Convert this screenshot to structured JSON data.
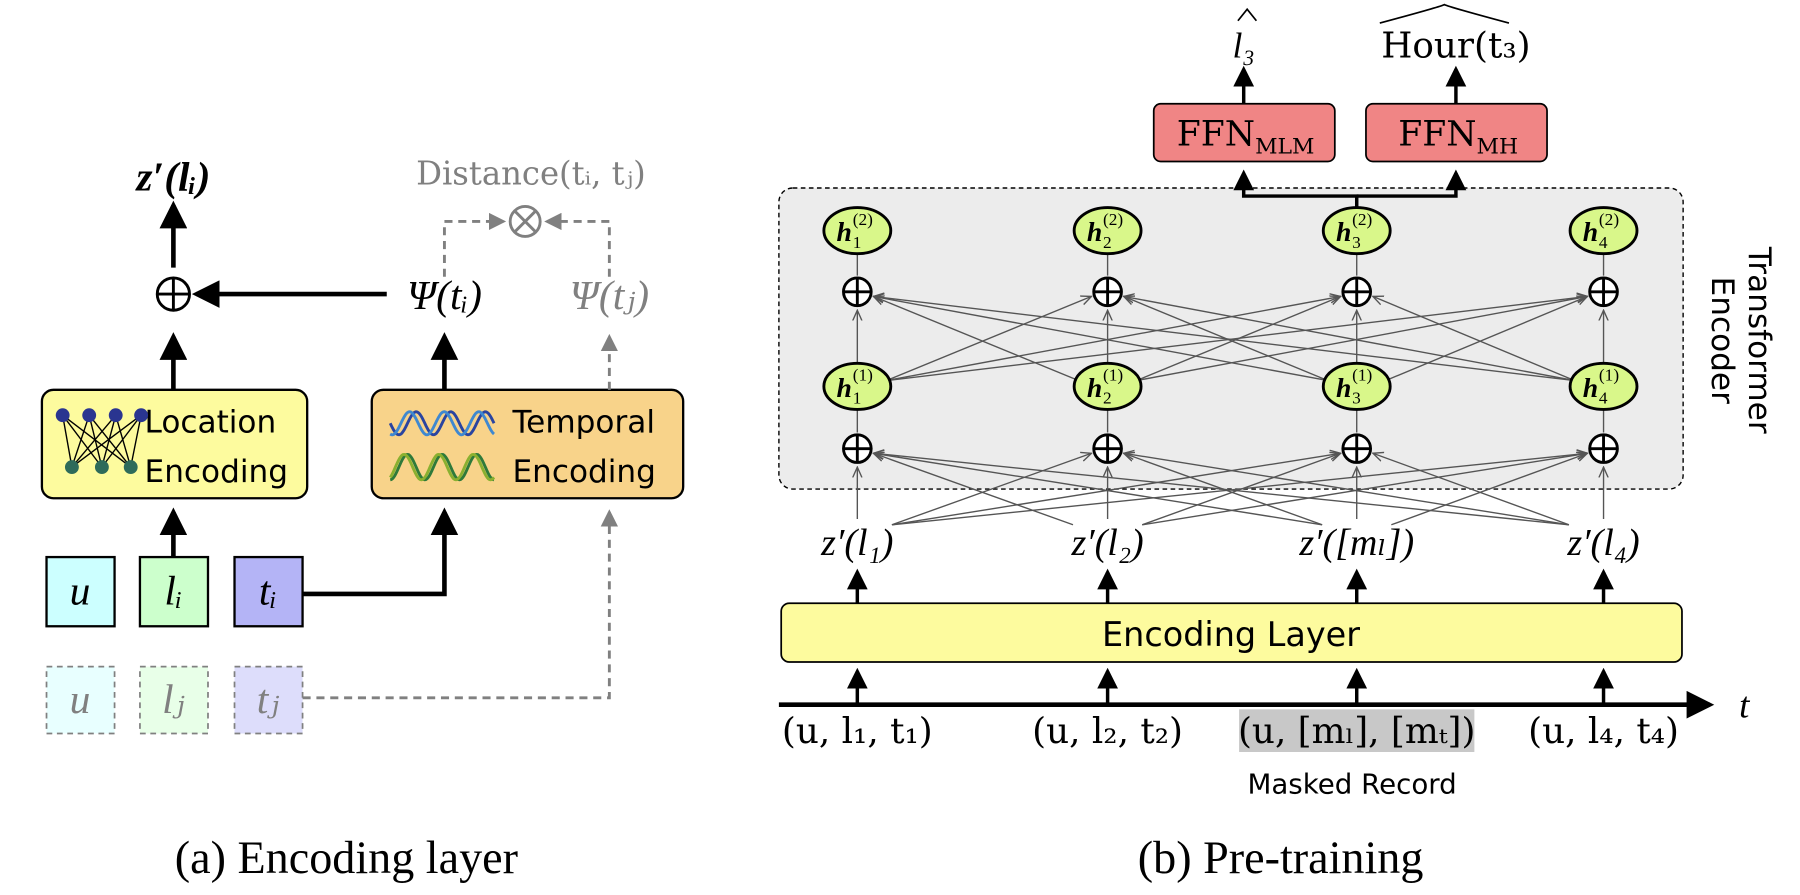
{
  "panel_a": {
    "caption": "(a) Encoding layer",
    "output_label": "z′(lᵢ)",
    "distance_label": "Distance(tᵢ, tⱼ)",
    "psi_i": "Ψ(tᵢ)",
    "psi_j": "Ψ(tⱼ)",
    "location_encoding": [
      "Location",
      "Encoding"
    ],
    "temporal_encoding": [
      "Temporal",
      "Encoding"
    ],
    "inputs_i": [
      "u",
      "lᵢ",
      "tᵢ"
    ],
    "inputs_j": [
      "u",
      "lⱼ",
      "tⱼ"
    ],
    "colors": {
      "location_box": "#fdfb9e",
      "temporal_box": "#f8d38a",
      "user": "#ccffff",
      "location": "#ccffcc",
      "time": "#b4b4f6",
      "faded": "#808080"
    }
  },
  "panel_b": {
    "caption": "(b) Pre-training",
    "encoder_label": [
      "Transformer",
      "Encoder"
    ],
    "encoding_layer": "Encoding Layer",
    "heads": [
      {
        "base": "FFN",
        "sub": "MLM",
        "output": "l₃"
      },
      {
        "base": "FFN",
        "sub": "MH",
        "output": "Hour(t₃)"
      }
    ],
    "hidden_layer2": [
      {
        "sub": "1",
        "sup": "(2)"
      },
      {
        "sub": "2",
        "sup": "(2)"
      },
      {
        "sub": "3",
        "sup": "(2)"
      },
      {
        "sub": "4",
        "sup": "(2)"
      }
    ],
    "hidden_layer1": [
      {
        "sub": "1",
        "sup": "(1)"
      },
      {
        "sub": "2",
        "sup": "(1)"
      },
      {
        "sub": "3",
        "sup": "(1)"
      },
      {
        "sub": "4",
        "sup": "(1)"
      }
    ],
    "hidden_base": "h",
    "embeddings": [
      "z′(l₁)",
      "z′(l₂)",
      "z′([mₗ])",
      "z′(l₄)"
    ],
    "records": [
      "(u, l₁, t₁)",
      "(u, l₂, t₂)",
      "(u, [mₗ], [mₜ])",
      "(u, l₄, t₄)"
    ],
    "masked_index": 2,
    "masked_label": "Masked Record",
    "time_axis_label": "t",
    "colors": {
      "ffn_box": "#f08585",
      "hidden_node": "#d9f78a",
      "encoder_bg": "#ececec",
      "encoding_layer": "#fdfb9e",
      "masked_bg": "#c8c8c8"
    }
  }
}
